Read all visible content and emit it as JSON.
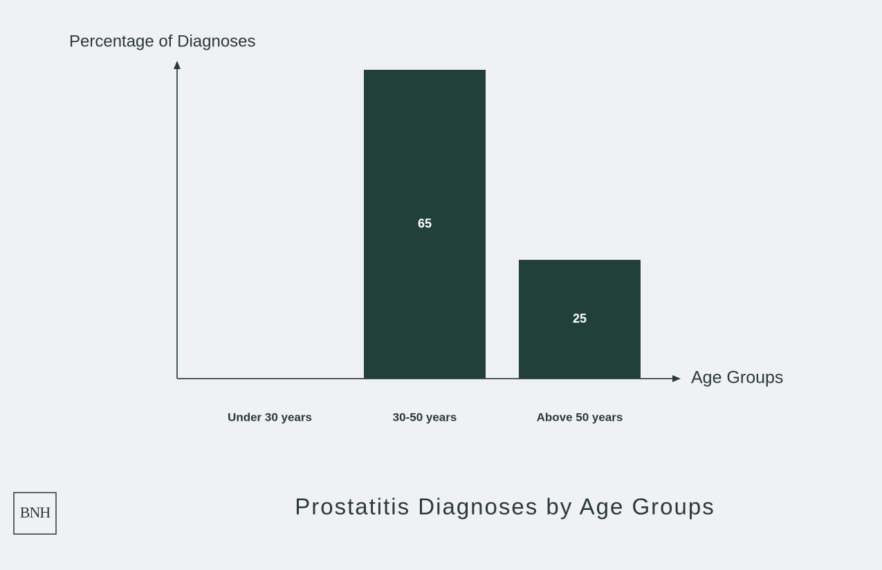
{
  "chart_data": {
    "type": "bar",
    "title": "Prostatitis Diagnoses by Age Groups",
    "y_label": "Percentage of Diagnoses",
    "x_label": "Age Groups",
    "categories": [
      "Under 30 years",
      "30-50 years",
      "Above 50 years"
    ],
    "values": [
      0,
      65,
      25
    ],
    "color": "#22403a",
    "ylim": [
      0,
      65
    ]
  },
  "logo": "BNH"
}
